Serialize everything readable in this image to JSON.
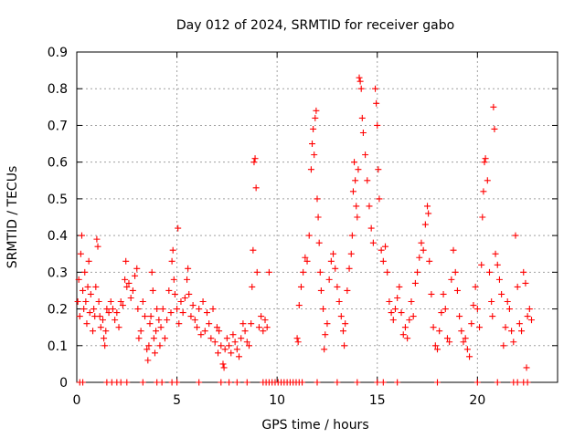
{
  "chart_data": {
    "type": "scatter",
    "title": "Day 012 of 2024, SRMTID for receiver gabo",
    "xlabel": "GPS time / hours",
    "ylabel": "SRMTID / TECUs",
    "xlim": [
      0,
      24
    ],
    "ylim": [
      0,
      0.9
    ],
    "xticks": [
      0,
      5,
      10,
      15,
      20
    ],
    "xtick_labels": [
      "0",
      "5",
      "10",
      "15",
      "20"
    ],
    "yticks": [
      0,
      0.1,
      0.2,
      0.3,
      0.4,
      0.5,
      0.6,
      0.7,
      0.8,
      0.9
    ],
    "ytick_labels": [
      "0",
      "0.1",
      "0.2",
      "0.3",
      "0.4",
      "0.5",
      "0.6",
      "0.7",
      "0.8",
      "0.9"
    ],
    "grid": true,
    "marker": "+",
    "color": "#ff0000",
    "series": [
      {
        "name": "SRMTID",
        "points": [
          [
            0.05,
            0.22
          ],
          [
            0.1,
            0.28
          ],
          [
            0.15,
            0.18
          ],
          [
            0.2,
            0.35
          ],
          [
            0.25,
            0.4
          ],
          [
            0.3,
            0.25
          ],
          [
            0.35,
            0.2
          ],
          [
            0.4,
            0.3
          ],
          [
            0.45,
            0.22
          ],
          [
            0.5,
            0.16
          ],
          [
            0.55,
            0.26
          ],
          [
            0.6,
            0.33
          ],
          [
            0.65,
            0.19
          ],
          [
            0.7,
            0.24
          ],
          [
            0.8,
            0.14
          ],
          [
            0.85,
            0.2
          ],
          [
            0.9,
            0.18
          ],
          [
            0.95,
            0.26
          ],
          [
            1.0,
            0.39
          ],
          [
            1.05,
            0.37
          ],
          [
            1.1,
            0.22
          ],
          [
            1.15,
            0.18
          ],
          [
            1.2,
            0.15
          ],
          [
            1.3,
            0.17
          ],
          [
            1.35,
            0.12
          ],
          [
            1.4,
            0.1
          ],
          [
            1.45,
            0.14
          ],
          [
            1.5,
            0.2
          ],
          [
            1.6,
            0.19
          ],
          [
            1.7,
            0.22
          ],
          [
            1.8,
            0.2
          ],
          [
            1.9,
            0.17
          ],
          [
            2.0,
            0.19
          ],
          [
            2.1,
            0.15
          ],
          [
            2.2,
            0.22
          ],
          [
            2.3,
            0.21
          ],
          [
            2.4,
            0.28
          ],
          [
            2.45,
            0.33
          ],
          [
            2.5,
            0.26
          ],
          [
            2.6,
            0.27
          ],
          [
            2.7,
            0.23
          ],
          [
            2.8,
            0.25
          ],
          [
            2.9,
            0.29
          ],
          [
            3.0,
            0.31
          ],
          [
            3.05,
            0.2
          ],
          [
            3.1,
            0.12
          ],
          [
            3.2,
            0.14
          ],
          [
            3.3,
            0.22
          ],
          [
            3.4,
            0.18
          ],
          [
            3.5,
            0.09
          ],
          [
            3.55,
            0.06
          ],
          [
            3.6,
            0.1
          ],
          [
            3.65,
            0.16
          ],
          [
            3.7,
            0.18
          ],
          [
            3.75,
            0.3
          ],
          [
            3.8,
            0.25
          ],
          [
            3.85,
            0.12
          ],
          [
            3.9,
            0.08
          ],
          [
            3.95,
            0.14
          ],
          [
            4.0,
            0.2
          ],
          [
            4.1,
            0.17
          ],
          [
            4.15,
            0.1
          ],
          [
            4.2,
            0.15
          ],
          [
            4.3,
            0.2
          ],
          [
            4.4,
            0.12
          ],
          [
            4.5,
            0.17
          ],
          [
            4.6,
            0.25
          ],
          [
            4.7,
            0.19
          ],
          [
            4.75,
            0.33
          ],
          [
            4.8,
            0.36
          ],
          [
            4.85,
            0.28
          ],
          [
            4.9,
            0.24
          ],
          [
            5.0,
            0.2
          ],
          [
            5.05,
            0.42
          ],
          [
            5.1,
            0.16
          ],
          [
            5.2,
            0.22
          ],
          [
            5.3,
            0.19
          ],
          [
            5.4,
            0.23
          ],
          [
            5.5,
            0.28
          ],
          [
            5.55,
            0.31
          ],
          [
            5.6,
            0.24
          ],
          [
            5.7,
            0.18
          ],
          [
            5.8,
            0.21
          ],
          [
            5.9,
            0.17
          ],
          [
            6.0,
            0.15
          ],
          [
            6.1,
            0.2
          ],
          [
            6.2,
            0.13
          ],
          [
            6.3,
            0.22
          ],
          [
            6.4,
            0.14
          ],
          [
            6.5,
            0.19
          ],
          [
            6.6,
            0.16
          ],
          [
            6.7,
            0.12
          ],
          [
            6.8,
            0.2
          ],
          [
            6.9,
            0.11
          ],
          [
            7.0,
            0.15
          ],
          [
            7.05,
            0.08
          ],
          [
            7.1,
            0.14
          ],
          [
            7.2,
            0.1
          ],
          [
            7.3,
            0.05
          ],
          [
            7.35,
            0.04
          ],
          [
            7.4,
            0.09
          ],
          [
            7.5,
            0.12
          ],
          [
            7.6,
            0.1
          ],
          [
            7.7,
            0.08
          ],
          [
            7.8,
            0.13
          ],
          [
            7.9,
            0.11
          ],
          [
            8.0,
            0.09
          ],
          [
            8.1,
            0.07
          ],
          [
            8.2,
            0.12
          ],
          [
            8.3,
            0.16
          ],
          [
            8.4,
            0.14
          ],
          [
            8.5,
            0.11
          ],
          [
            8.6,
            0.1
          ],
          [
            8.7,
            0.16
          ],
          [
            8.75,
            0.26
          ],
          [
            8.8,
            0.36
          ],
          [
            8.85,
            0.6
          ],
          [
            8.9,
            0.61
          ],
          [
            8.95,
            0.53
          ],
          [
            9.0,
            0.3
          ],
          [
            9.1,
            0.15
          ],
          [
            9.2,
            0.18
          ],
          [
            9.3,
            0.14
          ],
          [
            9.4,
            0.17
          ],
          [
            9.5,
            0.15
          ],
          [
            9.6,
            0.3
          ],
          [
            11.0,
            0.12
          ],
          [
            11.05,
            0.11
          ],
          [
            11.1,
            0.21
          ],
          [
            11.2,
            0.26
          ],
          [
            11.3,
            0.3
          ],
          [
            11.4,
            0.34
          ],
          [
            11.5,
            0.33
          ],
          [
            11.6,
            0.4
          ],
          [
            11.7,
            0.58
          ],
          [
            11.75,
            0.65
          ],
          [
            11.8,
            0.69
          ],
          [
            11.85,
            0.62
          ],
          [
            11.9,
            0.72
          ],
          [
            11.95,
            0.74
          ],
          [
            12.0,
            0.5
          ],
          [
            12.05,
            0.45
          ],
          [
            12.1,
            0.38
          ],
          [
            12.15,
            0.3
          ],
          [
            12.2,
            0.25
          ],
          [
            12.3,
            0.2
          ],
          [
            12.35,
            0.09
          ],
          [
            12.4,
            0.13
          ],
          [
            12.5,
            0.16
          ],
          [
            12.6,
            0.28
          ],
          [
            12.7,
            0.33
          ],
          [
            12.8,
            0.35
          ],
          [
            12.9,
            0.31
          ],
          [
            13.0,
            0.26
          ],
          [
            13.1,
            0.22
          ],
          [
            13.2,
            0.18
          ],
          [
            13.3,
            0.14
          ],
          [
            13.35,
            0.1
          ],
          [
            13.4,
            0.16
          ],
          [
            13.5,
            0.25
          ],
          [
            13.6,
            0.31
          ],
          [
            13.7,
            0.35
          ],
          [
            13.75,
            0.4
          ],
          [
            13.8,
            0.52
          ],
          [
            13.85,
            0.6
          ],
          [
            13.9,
            0.55
          ],
          [
            13.95,
            0.48
          ],
          [
            14.0,
            0.45
          ],
          [
            14.05,
            0.58
          ],
          [
            14.1,
            0.83
          ],
          [
            14.15,
            0.82
          ],
          [
            14.2,
            0.8
          ],
          [
            14.25,
            0.72
          ],
          [
            14.3,
            0.68
          ],
          [
            14.4,
            0.62
          ],
          [
            14.5,
            0.55
          ],
          [
            14.6,
            0.48
          ],
          [
            14.7,
            0.42
          ],
          [
            14.8,
            0.38
          ],
          [
            14.9,
            0.8
          ],
          [
            14.95,
            0.76
          ],
          [
            15.0,
            0.7
          ],
          [
            15.05,
            0.58
          ],
          [
            15.1,
            0.5
          ],
          [
            15.2,
            0.36
          ],
          [
            15.3,
            0.33
          ],
          [
            15.4,
            0.37
          ],
          [
            15.5,
            0.3
          ],
          [
            15.6,
            0.22
          ],
          [
            15.7,
            0.19
          ],
          [
            15.8,
            0.17
          ],
          [
            15.9,
            0.2
          ],
          [
            16.0,
            0.23
          ],
          [
            16.1,
            0.26
          ],
          [
            16.2,
            0.19
          ],
          [
            16.3,
            0.13
          ],
          [
            16.4,
            0.15
          ],
          [
            16.5,
            0.12
          ],
          [
            16.6,
            0.17
          ],
          [
            16.7,
            0.22
          ],
          [
            16.8,
            0.18
          ],
          [
            16.9,
            0.27
          ],
          [
            17.0,
            0.3
          ],
          [
            17.1,
            0.34
          ],
          [
            17.2,
            0.38
          ],
          [
            17.3,
            0.36
          ],
          [
            17.4,
            0.43
          ],
          [
            17.5,
            0.48
          ],
          [
            17.55,
            0.46
          ],
          [
            17.6,
            0.33
          ],
          [
            17.7,
            0.24
          ],
          [
            17.8,
            0.15
          ],
          [
            17.9,
            0.1
          ],
          [
            18.0,
            0.09
          ],
          [
            18.1,
            0.14
          ],
          [
            18.2,
            0.19
          ],
          [
            18.3,
            0.24
          ],
          [
            18.4,
            0.2
          ],
          [
            18.5,
            0.12
          ],
          [
            18.6,
            0.11
          ],
          [
            18.7,
            0.28
          ],
          [
            18.8,
            0.36
          ],
          [
            18.9,
            0.3
          ],
          [
            19.0,
            0.25
          ],
          [
            19.1,
            0.18
          ],
          [
            19.2,
            0.14
          ],
          [
            19.3,
            0.11
          ],
          [
            19.4,
            0.12
          ],
          [
            19.5,
            0.09
          ],
          [
            19.6,
            0.07
          ],
          [
            19.7,
            0.16
          ],
          [
            19.8,
            0.21
          ],
          [
            19.9,
            0.26
          ],
          [
            20.0,
            0.2
          ],
          [
            20.1,
            0.15
          ],
          [
            20.2,
            0.32
          ],
          [
            20.25,
            0.45
          ],
          [
            20.3,
            0.52
          ],
          [
            20.35,
            0.6
          ],
          [
            20.4,
            0.61
          ],
          [
            20.5,
            0.55
          ],
          [
            20.6,
            0.3
          ],
          [
            20.7,
            0.22
          ],
          [
            20.75,
            0.18
          ],
          [
            20.8,
            0.75
          ],
          [
            20.85,
            0.69
          ],
          [
            20.9,
            0.35
          ],
          [
            21.0,
            0.32
          ],
          [
            21.1,
            0.28
          ],
          [
            21.2,
            0.24
          ],
          [
            21.3,
            0.1
          ],
          [
            21.4,
            0.15
          ],
          [
            21.5,
            0.22
          ],
          [
            21.6,
            0.2
          ],
          [
            21.7,
            0.14
          ],
          [
            21.8,
            0.11
          ],
          [
            21.9,
            0.4
          ],
          [
            22.0,
            0.26
          ],
          [
            22.1,
            0.16
          ],
          [
            22.2,
            0.14
          ],
          [
            22.3,
            0.3
          ],
          [
            22.4,
            0.27
          ],
          [
            22.45,
            0.04
          ],
          [
            22.5,
            0.18
          ],
          [
            22.6,
            0.2
          ],
          [
            22.7,
            0.17
          ]
        ],
        "zeros": [
          0.15,
          0.3,
          1.5,
          1.75,
          2.0,
          2.2,
          2.5,
          3.3,
          4.0,
          4.25,
          4.75,
          5.0,
          6.1,
          7.2,
          7.6,
          8.0,
          8.5,
          9.3,
          9.45,
          9.6,
          9.75,
          9.9,
          10.05,
          10.2,
          10.35,
          10.5,
          10.65,
          10.8,
          10.95,
          11.1,
          11.25,
          12.0,
          13.0,
          14.0,
          15.0,
          15.3,
          16.0,
          18.0,
          20.0,
          21.0,
          21.8,
          22.0,
          22.3,
          22.5
        ]
      }
    ]
  }
}
